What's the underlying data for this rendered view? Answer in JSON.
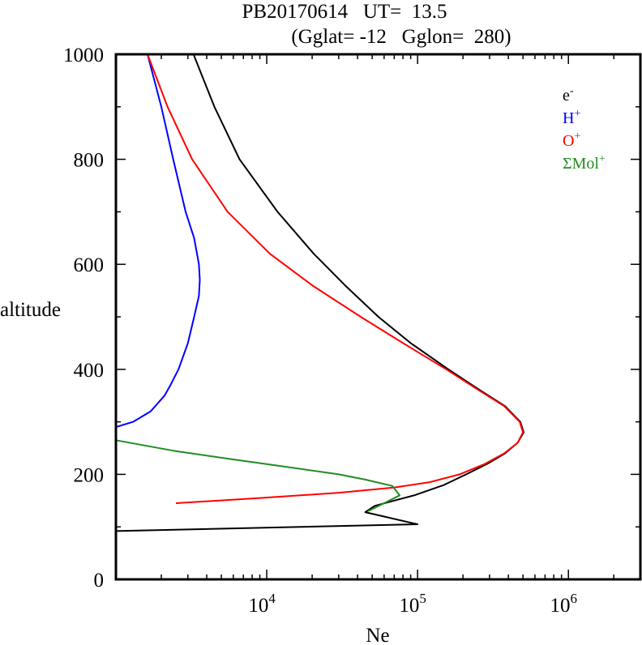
{
  "chart_data": {
    "type": "line",
    "title_line1": "PB20170614   UT=  13.5",
    "title_line2": "(Gglat= -12   Gglon=  280)",
    "xlabel": "Ne",
    "ylabel": "altitude",
    "xscale": "log",
    "xlim": [
      1000,
      3000000
    ],
    "ylim": [
      0,
      1000
    ],
    "yticks": [
      0,
      200,
      400,
      600,
      800,
      1000
    ],
    "ytick_labels": [
      "0",
      "200",
      "400",
      "600",
      "800",
      "1000"
    ],
    "xticks": [
      10000,
      100000,
      1000000
    ],
    "xtick_labels": [
      {
        "base": "10",
        "exp": "4"
      },
      {
        "base": "10",
        "exp": "5"
      },
      {
        "base": "10",
        "exp": "6"
      }
    ],
    "legend_position": "top-right",
    "series": [
      {
        "name": "e-",
        "label": "e",
        "sup": "-",
        "color": "#000000",
        "points": [
          [
            92,
            1000
          ],
          [
            105,
            100000
          ],
          [
            128,
            45000
          ],
          [
            140,
            52000
          ],
          [
            150,
            70000
          ],
          [
            160,
            95000
          ],
          [
            180,
            150000
          ],
          [
            200,
            210000
          ],
          [
            220,
            290000
          ],
          [
            240,
            380000
          ],
          [
            260,
            460000
          ],
          [
            280,
            505000
          ],
          [
            300,
            480000
          ],
          [
            330,
            380000
          ],
          [
            360,
            260000
          ],
          [
            400,
            160000
          ],
          [
            450,
            90000
          ],
          [
            500,
            55000
          ],
          [
            560,
            33000
          ],
          [
            620,
            20500
          ],
          [
            700,
            11800
          ],
          [
            800,
            6600
          ],
          [
            900,
            4500
          ],
          [
            1000,
            3270
          ]
        ]
      },
      {
        "name": "H+",
        "label": "H",
        "sup": "+",
        "color": "#0000ff",
        "points": [
          [
            290,
            1000
          ],
          [
            300,
            1300
          ],
          [
            320,
            1700
          ],
          [
            350,
            2100
          ],
          [
            370,
            2300
          ],
          [
            400,
            2600
          ],
          [
            450,
            3000
          ],
          [
            500,
            3300
          ],
          [
            540,
            3550
          ],
          [
            570,
            3600
          ],
          [
            600,
            3550
          ],
          [
            650,
            3300
          ],
          [
            700,
            2900
          ],
          [
            800,
            2400
          ],
          [
            900,
            2000
          ],
          [
            1000,
            1620
          ]
        ]
      },
      {
        "name": "O+",
        "label": "O",
        "sup": "+",
        "color": "#ff0000",
        "points": [
          [
            145,
            2500
          ],
          [
            155,
            9000
          ],
          [
            165,
            30000
          ],
          [
            175,
            70000
          ],
          [
            185,
            120000
          ],
          [
            200,
            190000
          ],
          [
            220,
            280000
          ],
          [
            240,
            375000
          ],
          [
            260,
            460000
          ],
          [
            280,
            500000
          ],
          [
            300,
            475000
          ],
          [
            330,
            375000
          ],
          [
            360,
            255000
          ],
          [
            400,
            155000
          ],
          [
            450,
            80000
          ],
          [
            500,
            42000
          ],
          [
            560,
            20000
          ],
          [
            620,
            10500
          ],
          [
            700,
            5500
          ],
          [
            800,
            3200
          ],
          [
            900,
            2200
          ],
          [
            1000,
            1620
          ]
        ]
      },
      {
        "name": "ΣMol+",
        "label": "ΣMol",
        "sup": "+",
        "color": "#228b22",
        "points": [
          [
            130,
            47000
          ],
          [
            145,
            60000
          ],
          [
            160,
            76000
          ],
          [
            178,
            68000
          ],
          [
            190,
            45000
          ],
          [
            200,
            30000
          ],
          [
            215,
            13000
          ],
          [
            230,
            5500
          ],
          [
            245,
            2400
          ],
          [
            265,
            1000
          ]
        ]
      }
    ]
  }
}
